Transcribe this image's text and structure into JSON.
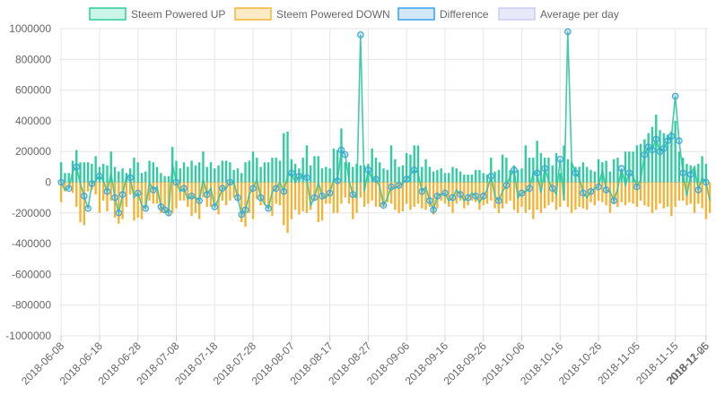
{
  "chart_data": {
    "type": "bar",
    "title": "",
    "xlabel": "",
    "ylabel": "",
    "ylim": [
      -1000000,
      1000000
    ],
    "y_ticks": [
      1000000,
      800000,
      600000,
      400000,
      200000,
      0,
      -200000,
      -400000,
      -600000,
      -800000,
      -1000000
    ],
    "y_tick_labels": [
      "1000000",
      "800000",
      "600000",
      "400000",
      "200000",
      "0",
      "-200000",
      "-400000",
      "-600000",
      "-800000",
      "-1000000"
    ],
    "x_start": "2018-06-08",
    "x_end": "2018-12-06",
    "x_tick_labels": [
      "2018-06-08",
      "2018-06-18",
      "2018-06-28",
      "2018-07-08",
      "2018-07-18",
      "2018-07-28",
      "2018-08-07",
      "2018-08-17",
      "2018-08-27",
      "2018-09-06",
      "2018-09-16",
      "2018-09-26",
      "2018-10-06",
      "2018-10-16",
      "2018-10-26",
      "2018-11-05",
      "2018-11-15",
      "2018-11-25",
      "2018-12-06"
    ],
    "grid": true,
    "legend_position": "top",
    "series": [
      {
        "name": "Steem Powered UP",
        "color": "#2ecc9f",
        "fill": "#c9f4e6",
        "values": [
          130000,
          60000,
          60000,
          140000,
          210000,
          130000,
          130000,
          130000,
          120000,
          170000,
          100000,
          120000,
          110000,
          200000,
          100000,
          70000,
          90000,
          60000,
          90000,
          160000,
          130000,
          60000,
          70000,
          140000,
          130000,
          100000,
          60000,
          40000,
          40000,
          230000,
          140000,
          90000,
          130000,
          100000,
          140000,
          110000,
          130000,
          200000,
          100000,
          130000,
          90000,
          110000,
          140000,
          140000,
          130000,
          80000,
          90000,
          60000,
          130000,
          140000,
          200000,
          160000,
          100000,
          130000,
          130000,
          160000,
          160000,
          140000,
          320000,
          330000,
          150000,
          120000,
          90000,
          160000,
          240000,
          110000,
          170000,
          170000,
          90000,
          100000,
          90000,
          220000,
          210000,
          350000,
          130000,
          130000,
          100000,
          120000,
          110000,
          110000,
          120000,
          220000,
          160000,
          130000,
          90000,
          80000,
          240000,
          150000,
          100000,
          110000,
          190000,
          180000,
          240000,
          240000,
          100000,
          150000,
          100000,
          70000,
          80000,
          90000,
          60000,
          60000,
          100000,
          90000,
          70000,
          50000,
          50000,
          50000,
          80000,
          80000,
          60000,
          50000,
          160000,
          70000,
          80000,
          180000,
          160000,
          80000,
          110000,
          80000,
          90000,
          240000,
          160000,
          160000,
          270000,
          190000,
          160000,
          160000,
          110000,
          190000,
          60000,
          240000,
          150000,
          130000,
          100000,
          100000,
          130000,
          100000,
          80000,
          70000,
          150000,
          130000,
          140000,
          70000,
          150000,
          160000,
          80000,
          200000,
          200000,
          200000,
          240000,
          250000,
          280000,
          320000,
          360000,
          440000,
          340000,
          320000,
          310000,
          330000,
          400000,
          200000,
          160000,
          120000,
          110000,
          100000,
          120000,
          170000,
          120000
        ]
      },
      {
        "name": "Steem Powered DOWN",
        "color": "#f5b335",
        "fill": "#fdebc8",
        "values": [
          -130000,
          -60000,
          -40000,
          -70000,
          -160000,
          -260000,
          -280000,
          -60000,
          -50000,
          -80000,
          -200000,
          -120000,
          -190000,
          -120000,
          -230000,
          -270000,
          -240000,
          -160000,
          -80000,
          -250000,
          -230000,
          -240000,
          -170000,
          -120000,
          -140000,
          -140000,
          -200000,
          -200000,
          -220000,
          -200000,
          -170000,
          -120000,
          -120000,
          -160000,
          -220000,
          -200000,
          -240000,
          -100000,
          -160000,
          -160000,
          -160000,
          -210000,
          -120000,
          -150000,
          -120000,
          -100000,
          -120000,
          -260000,
          -290000,
          -200000,
          -240000,
          -110000,
          -150000,
          -150000,
          -170000,
          -220000,
          -140000,
          -150000,
          -280000,
          -330000,
          -240000,
          -180000,
          -210000,
          -190000,
          -200000,
          -180000,
          -120000,
          -260000,
          -250000,
          -140000,
          -140000,
          -200000,
          -200000,
          -140000,
          -100000,
          -140000,
          -240000,
          -200000,
          -100000,
          -160000,
          -140000,
          -120000,
          -160000,
          -160000,
          -160000,
          -130000,
          -140000,
          -180000,
          -200000,
          -190000,
          -140000,
          -180000,
          -160000,
          -140000,
          -170000,
          -180000,
          -160000,
          -210000,
          -170000,
          -120000,
          -140000,
          -160000,
          -200000,
          -140000,
          -120000,
          -170000,
          -150000,
          -120000,
          -130000,
          -180000,
          -150000,
          -140000,
          -120000,
          -170000,
          -200000,
          -170000,
          -140000,
          -120000,
          -180000,
          -200000,
          -160000,
          -200000,
          -180000,
          -240000,
          -180000,
          -200000,
          -170000,
          -150000,
          -130000,
          -180000,
          -160000,
          -120000,
          -160000,
          -200000,
          -180000,
          -160000,
          -170000,
          -180000,
          -130000,
          -150000,
          -120000,
          -130000,
          -150000,
          -200000,
          -140000,
          -160000,
          -130000,
          -150000,
          -130000,
          -140000,
          -160000,
          -120000,
          -150000,
          -160000,
          -200000,
          -180000,
          -140000,
          -170000,
          -160000,
          -220000,
          -160000,
          -120000,
          -120000,
          -150000,
          -140000,
          -200000,
          -140000,
          -170000,
          -240000,
          -200000
        ]
      },
      {
        "name": "Difference",
        "color": "#36a2eb",
        "fill": "#d2e8f8",
        "values": [
          0,
          -50000,
          -40000,
          70000,
          100000,
          -10000,
          -90000,
          -170000,
          -10000,
          10000,
          40000,
          10000,
          -60000,
          60000,
          -100000,
          -200000,
          -80000,
          40000,
          30000,
          -100000,
          -70000,
          -150000,
          -170000,
          0,
          -50000,
          -30000,
          -160000,
          -180000,
          -200000,
          120000,
          0,
          -60000,
          -40000,
          -110000,
          -90000,
          -100000,
          -120000,
          20000,
          -80000,
          -40000,
          -160000,
          -110000,
          -40000,
          -40000,
          0,
          0,
          -100000,
          -210000,
          -180000,
          -80000,
          -40000,
          20000,
          -100000,
          -140000,
          -170000,
          -60000,
          -40000,
          0,
          -60000,
          40000,
          60000,
          0,
          40000,
          40000,
          30000,
          -150000,
          -100000,
          0,
          -90000,
          -100000,
          -70000,
          20000,
          10000,
          210000,
          180000,
          10000,
          -80000,
          -100000,
          960000,
          -60000,
          80000,
          20000,
          20000,
          -30000,
          -150000,
          -100000,
          -30000,
          -40000,
          -20000,
          -10000,
          20000,
          50000,
          80000,
          60000,
          -60000,
          -30000,
          -120000,
          -180000,
          -90000,
          -80000,
          -70000,
          -120000,
          -100000,
          -50000,
          -80000,
          -120000,
          -100000,
          -70000,
          -90000,
          -130000,
          -90000,
          -50000,
          40000,
          -90000,
          -120000,
          -60000,
          -20000,
          40000,
          80000,
          -100000,
          -70000,
          -60000,
          -40000,
          60000,
          60000,
          -70000,
          90000,
          10000,
          -40000,
          -80000,
          150000,
          -120000,
          980000,
          130000,
          60000,
          30000,
          -70000,
          -100000,
          -60000,
          -40000,
          -30000,
          80000,
          -50000,
          -60000,
          -120000,
          -40000,
          90000,
          -20000,
          60000,
          40000,
          -30000,
          20000,
          180000,
          230000,
          210000,
          280000,
          200000,
          220000,
          270000,
          300000,
          560000,
          270000,
          60000,
          -90000,
          50000,
          100000,
          -50000,
          30000,
          0,
          -120000
        ]
      },
      {
        "name": "Average per day",
        "color": "#c9cdf2",
        "fill": "#e7e9fb",
        "values": []
      }
    ]
  }
}
